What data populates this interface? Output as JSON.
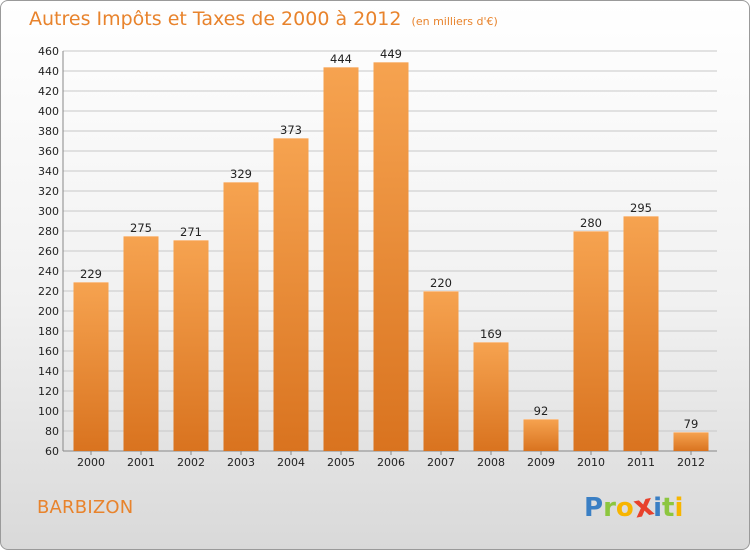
{
  "title": "Autres Impôts et Taxes de 2000 à 2012",
  "unit": "(en milliers d'€)",
  "location": "BARBIZON",
  "logo": {
    "text": "Proxiti",
    "letters": [
      {
        "ch": "P",
        "color": "#3a7fc4"
      },
      {
        "ch": "r",
        "color": "#8cc63f"
      },
      {
        "ch": "o",
        "color": "#f7b500"
      },
      {
        "ch": "x",
        "color": "#e8412c"
      },
      {
        "ch": "i",
        "color": "#3a7fc4"
      },
      {
        "ch": "t",
        "color": "#8cc63f"
      },
      {
        "ch": "i",
        "color": "#f7b500"
      }
    ]
  },
  "colors": {
    "accent": "#e8832c",
    "bar_top": "#f6a350",
    "bar_bottom": "#d9731f",
    "grid": "#c8c8c8"
  },
  "chart_data": {
    "type": "bar",
    "categories": [
      "2000",
      "2001",
      "2002",
      "2003",
      "2004",
      "2005",
      "2006",
      "2007",
      "2008",
      "2009",
      "2010",
      "2011",
      "2012"
    ],
    "values": [
      229,
      275,
      271,
      329,
      373,
      444,
      449,
      220,
      169,
      92,
      280,
      295,
      79
    ],
    "ylim": [
      60,
      460
    ],
    "ytick_step": 20,
    "grid": true
  }
}
